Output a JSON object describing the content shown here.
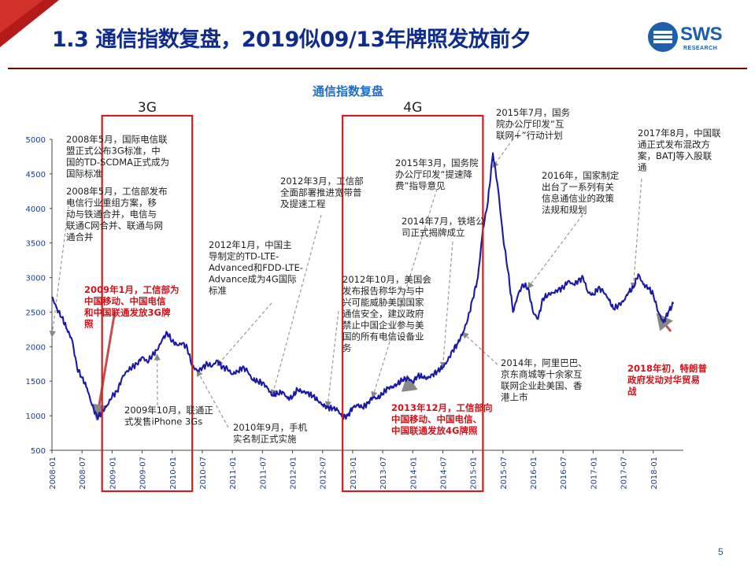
{
  "slide": {
    "title": "1.3 通信指数复盘，2019似09/13年牌照发放前夕",
    "logo_text": "SWS",
    "logo_sub": "RESEARCH",
    "page_number": "5",
    "colors": {
      "title": "#0f2c8c",
      "line": "#1a1aa6",
      "box": "#cc1f1f",
      "red_text": "#d0141b",
      "rule": "#7f0000"
    }
  },
  "chart_data": {
    "type": "line",
    "title": "通信指数复盘",
    "ylim": [
      500,
      5000
    ],
    "yticks": [
      500,
      1000,
      1500,
      2000,
      2500,
      3000,
      3500,
      4000,
      4500,
      5000
    ],
    "xlim": [
      "2008-01",
      "2018-07"
    ],
    "xticks": [
      "2008-01",
      "2008-07",
      "2009-01",
      "2009-07",
      "2010-01",
      "2010-07",
      "2011-01",
      "2011-07",
      "2012-01",
      "2012-07",
      "2013-01",
      "2013-07",
      "2014-01",
      "2014-07",
      "2015-01",
      "2015-07",
      "2016-01",
      "2016-07",
      "2017-01",
      "2017-07",
      "2018-01"
    ],
    "series": [
      {
        "points": [
          [
            "2008-01",
            2720
          ],
          [
            "2008-02",
            2550
          ],
          [
            "2008-03",
            2420
          ],
          [
            "2008-04",
            2250
          ],
          [
            "2008-05",
            2100
          ],
          [
            "2008-06",
            1700
          ],
          [
            "2008-07",
            1550
          ],
          [
            "2008-08",
            1400
          ],
          [
            "2008-09",
            1150
          ],
          [
            "2008-10",
            980
          ],
          [
            "2008-11",
            1050
          ],
          [
            "2008-12",
            1150
          ],
          [
            "2009-01",
            1280
          ],
          [
            "2009-02",
            1350
          ],
          [
            "2009-03",
            1550
          ],
          [
            "2009-04",
            1650
          ],
          [
            "2009-05",
            1700
          ],
          [
            "2009-06",
            1750
          ],
          [
            "2009-07",
            1850
          ],
          [
            "2009-08",
            1780
          ],
          [
            "2009-09",
            1870
          ],
          [
            "2009-10",
            1950
          ],
          [
            "2009-11",
            2100
          ],
          [
            "2009-12",
            2200
          ],
          [
            "2010-01",
            2080
          ],
          [
            "2010-02",
            2020
          ],
          [
            "2010-03",
            2050
          ],
          [
            "2010-04",
            1980
          ],
          [
            "2010-05",
            1720
          ],
          [
            "2010-06",
            1650
          ],
          [
            "2010-07",
            1690
          ],
          [
            "2010-08",
            1750
          ],
          [
            "2010-09",
            1720
          ],
          [
            "2010-10",
            1800
          ],
          [
            "2010-11",
            1700
          ],
          [
            "2010-12",
            1680
          ],
          [
            "2011-01",
            1600
          ],
          [
            "2011-02",
            1640
          ],
          [
            "2011-03",
            1700
          ],
          [
            "2011-04",
            1650
          ],
          [
            "2011-05",
            1520
          ],
          [
            "2011-06",
            1500
          ],
          [
            "2011-07",
            1480
          ],
          [
            "2011-08",
            1400
          ],
          [
            "2011-09",
            1290
          ],
          [
            "2011-10",
            1320
          ],
          [
            "2011-11",
            1350
          ],
          [
            "2011-12",
            1250
          ],
          [
            "2012-01",
            1270
          ],
          [
            "2012-02",
            1380
          ],
          [
            "2012-03",
            1350
          ],
          [
            "2012-04",
            1330
          ],
          [
            "2012-05",
            1290
          ],
          [
            "2012-06",
            1220
          ],
          [
            "2012-07",
            1160
          ],
          [
            "2012-08",
            1120
          ],
          [
            "2012-09",
            1110
          ],
          [
            "2012-10",
            1080
          ],
          [
            "2012-11",
            980
          ],
          [
            "2012-12",
            1000
          ],
          [
            "2013-01",
            1120
          ],
          [
            "2013-02",
            1150
          ],
          [
            "2013-03",
            1120
          ],
          [
            "2013-04",
            1180
          ],
          [
            "2013-05",
            1270
          ],
          [
            "2013-06",
            1250
          ],
          [
            "2013-07",
            1320
          ],
          [
            "2013-08",
            1400
          ],
          [
            "2013-09",
            1420
          ],
          [
            "2013-10",
            1460
          ],
          [
            "2013-11",
            1520
          ],
          [
            "2013-12",
            1540
          ],
          [
            "2014-01",
            1490
          ],
          [
            "2014-02",
            1580
          ],
          [
            "2014-03",
            1560
          ],
          [
            "2014-04",
            1540
          ],
          [
            "2014-05",
            1600
          ],
          [
            "2014-06",
            1650
          ],
          [
            "2014-07",
            1700
          ],
          [
            "2014-08",
            1800
          ],
          [
            "2014-09",
            1950
          ],
          [
            "2014-10",
            2050
          ],
          [
            "2014-11",
            2200
          ],
          [
            "2014-12",
            2400
          ],
          [
            "2015-01",
            2700
          ],
          [
            "2015-02",
            3000
          ],
          [
            "2015-03",
            3700
          ],
          [
            "2015-04",
            4100
          ],
          [
            "2015-05",
            4800
          ],
          [
            "2015-06",
            4300
          ],
          [
            "2015-07",
            3600
          ],
          [
            "2015-08",
            3100
          ],
          [
            "2015-09",
            2500
          ],
          [
            "2015-10",
            2750
          ],
          [
            "2015-11",
            2900
          ],
          [
            "2015-12",
            2850
          ],
          [
            "2016-01",
            2500
          ],
          [
            "2016-02",
            2400
          ],
          [
            "2016-03",
            2700
          ],
          [
            "2016-04",
            2750
          ],
          [
            "2016-05",
            2780
          ],
          [
            "2016-06",
            2820
          ],
          [
            "2016-07",
            2850
          ],
          [
            "2016-08",
            2950
          ],
          [
            "2016-09",
            2900
          ],
          [
            "2016-10",
            2950
          ],
          [
            "2016-11",
            3000
          ],
          [
            "2016-12",
            2780
          ],
          [
            "2017-01",
            2750
          ],
          [
            "2017-02",
            2850
          ],
          [
            "2017-03",
            2800
          ],
          [
            "2017-04",
            2700
          ],
          [
            "2017-05",
            2550
          ],
          [
            "2017-06",
            2600
          ],
          [
            "2017-07",
            2650
          ],
          [
            "2017-08",
            2780
          ],
          [
            "2017-09",
            2850
          ],
          [
            "2017-10",
            3050
          ],
          [
            "2017-11",
            2900
          ],
          [
            "2017-12",
            2850
          ],
          [
            "2018-01",
            2750
          ],
          [
            "2018-02",
            2500
          ],
          [
            "2018-03",
            2350
          ],
          [
            "2018-04",
            2500
          ],
          [
            "2018-05",
            2620
          ]
        ]
      }
    ],
    "period_labels": [
      "3G",
      "4G"
    ],
    "annotations": [
      {
        "lines": [
          "2008年5月，国际电信联",
          "盟正式公布3G标准，中",
          "国的TD-SCDMA正式成为",
          "国际标准"
        ],
        "style": "black"
      },
      {
        "lines": [
          "2008年5月，工信部发布",
          "电信行业重组方案，移",
          "动与铁通合并，电信与",
          "联通C网合并、联通与网",
          "通合并"
        ],
        "style": "black"
      },
      {
        "lines": [
          "2009年1月，工信部为",
          "中国移动、中国电信",
          "和中国联通发放3G牌",
          "照"
        ],
        "style": "red"
      },
      {
        "lines": [
          "2009年10月，联通正",
          "式发售iPhone 3Gs"
        ],
        "style": "black"
      },
      {
        "lines": [
          "2010年9月，手机",
          "实名制正式实施"
        ],
        "style": "black"
      },
      {
        "lines": [
          "2012年1月，中国主",
          "导制定的TD-LTE-",
          "Advanced和FDD-LTE-",
          "Advance成为4G国际",
          "标准"
        ],
        "style": "black"
      },
      {
        "lines": [
          "2012年3月，工信部",
          "全面部署推进宽带普",
          "及提速工程"
        ],
        "style": "black"
      },
      {
        "lines": [
          "2012年10月，美国会",
          "发布报告称华为与中",
          "兴可能威胁美国国家",
          "通信安全，建议政府",
          "禁止中国企业参与美",
          "国的所有电信设备业",
          "务"
        ],
        "style": "black"
      },
      {
        "lines": [
          "2015年3月，国务院",
          "办公厅印发“提速降",
          "费”指导意见"
        ],
        "style": "black"
      },
      {
        "lines": [
          "2014年7月，铁塔公",
          "司正式揭牌成立"
        ],
        "style": "black"
      },
      {
        "lines": [
          "2013年12月，工信部向",
          "中国移动、中国电信、",
          "中国联通发放4G牌照"
        ],
        "style": "red"
      },
      {
        "lines": [
          "2015年7月，国务",
          "院办公厅印发“互",
          "联网+”行动计划"
        ],
        "style": "black"
      },
      {
        "lines": [
          "2016年，国家制定",
          "出台了一系列有关",
          "信息通信业的政策",
          "法规和规划"
        ],
        "style": "black"
      },
      {
        "lines": [
          "2014年，阿里巴巴、",
          "京东商城等十余家互",
          "联网企业赴美国、香",
          "港上市"
        ],
        "style": "black"
      },
      {
        "lines": [
          "2017年8月，中国联",
          "通正式发布混改方",
          "案，BATJ等入股联",
          "通"
        ],
        "style": "black"
      },
      {
        "lines": [
          "2018年初，特朗普",
          "政府发动对华贸易",
          "战"
        ],
        "style": "red"
      }
    ]
  }
}
